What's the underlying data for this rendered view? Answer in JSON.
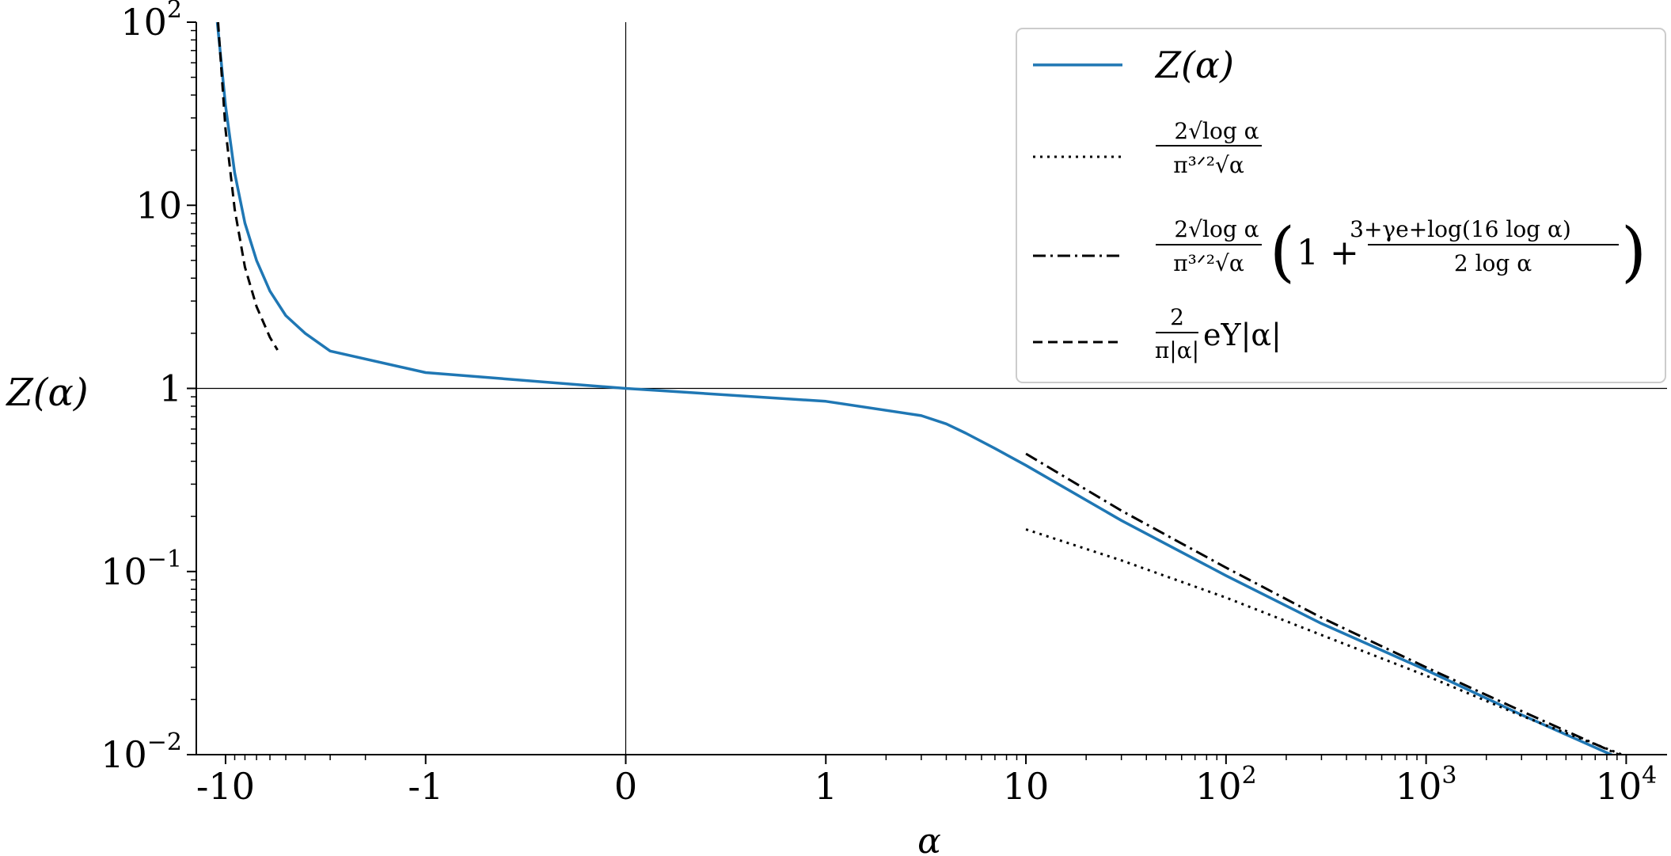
{
  "chart_data": {
    "type": "line",
    "title": "",
    "xlabel": "α",
    "ylabel": "Z(α)",
    "x_scale": "symlog",
    "y_scale": "log",
    "xlim": [
      -14,
      16000
    ],
    "ylim": [
      0.01,
      100
    ],
    "grid": false,
    "reference_lines": {
      "x": 0,
      "y": 1
    },
    "x_ticks": [
      {
        "value": -10,
        "label": "-10"
      },
      {
        "value": -1,
        "label": "-1"
      },
      {
        "value": 0,
        "label": "0"
      },
      {
        "value": 1,
        "label": "1"
      },
      {
        "value": 10,
        "label": "10"
      },
      {
        "value": 100,
        "label": "10²"
      },
      {
        "value": 1000,
        "label": "10³"
      },
      {
        "value": 10000,
        "label": "10⁴"
      }
    ],
    "y_ticks": [
      {
        "value": 100,
        "label": "10²"
      },
      {
        "value": 10,
        "label": "10"
      },
      {
        "value": 1,
        "label": "1"
      },
      {
        "value": 0.1,
        "label": "10⁻¹"
      },
      {
        "value": 0.01,
        "label": "10⁻²"
      }
    ],
    "legend_position": "top-right",
    "series": [
      {
        "name": "Z(α)",
        "color": "#1f77b4",
        "style": "solid",
        "points": [
          [
            -11.0,
            100
          ],
          [
            -10.5,
            60
          ],
          [
            -10.0,
            35
          ],
          [
            -9.0,
            15
          ],
          [
            -8.0,
            8
          ],
          [
            -7.0,
            5
          ],
          [
            -6.0,
            3.4
          ],
          [
            -5.0,
            2.5
          ],
          [
            -4.0,
            2.0
          ],
          [
            -3.0,
            1.6
          ],
          [
            -1.0,
            1.22
          ],
          [
            0,
            1.0
          ],
          [
            1.0,
            0.85
          ],
          [
            3.0,
            0.71
          ],
          [
            4.0,
            0.64
          ],
          [
            5.0,
            0.57
          ],
          [
            7.0,
            0.47
          ],
          [
            10,
            0.38
          ],
          [
            30,
            0.19
          ],
          [
            100,
            0.095
          ],
          [
            300,
            0.052
          ],
          [
            1000,
            0.029
          ],
          [
            3000,
            0.0165
          ],
          [
            10000,
            0.0092
          ],
          [
            16000,
            0.0074
          ]
        ]
      },
      {
        "name": "2√log α / (π^{3/2}√α)",
        "color": "#000000",
        "style": "dotted",
        "points": [
          [
            10,
            0.17
          ],
          [
            30,
            0.115
          ],
          [
            100,
            0.072
          ],
          [
            300,
            0.045
          ],
          [
            1000,
            0.027
          ],
          [
            3000,
            0.0163
          ],
          [
            10000,
            0.0098
          ],
          [
            14000,
            0.0086
          ]
        ]
      },
      {
        "name": "2√log α / (π^{3/2}√α) · (1 + (3+γe+log(16 log α)) / (2 log α))",
        "color": "#000000",
        "style": "dashdot",
        "points": [
          [
            10,
            0.44
          ],
          [
            30,
            0.215
          ],
          [
            100,
            0.105
          ],
          [
            300,
            0.056
          ],
          [
            1000,
            0.03
          ],
          [
            3000,
            0.0173
          ],
          [
            10000,
            0.0096
          ],
          [
            16000,
            0.0078
          ]
        ]
      },
      {
        "name": "2/(π|α|) e^{Υ|α|}",
        "color": "#000000",
        "style": "dashed",
        "points": [
          [
            -10.9,
            100
          ],
          [
            -10.0,
            26
          ],
          [
            -9.0,
            9.5
          ],
          [
            -8.0,
            4.6
          ],
          [
            -7.0,
            2.8
          ],
          [
            -6.0,
            1.9
          ],
          [
            -5.5,
            1.62
          ]
        ]
      }
    ],
    "legend_entries": [
      {
        "series": 0,
        "label": "Z(α)"
      },
      {
        "series": 1,
        "numerator": "2√log α",
        "denominator": "π³ᐟ²√α"
      },
      {
        "series": 2,
        "numerator": "2√log α",
        "denominator": "π³ᐟ²√α",
        "bracket_open": "(",
        "one_plus": "1 +",
        "inner_numerator": "3+γe+log(16 log α)",
        "inner_denominator": "2 log α",
        "bracket_close": ")"
      },
      {
        "series": 3,
        "numerator": "2",
        "denominator": "π|α|",
        "suffix": "eΥ|α|"
      }
    ]
  }
}
